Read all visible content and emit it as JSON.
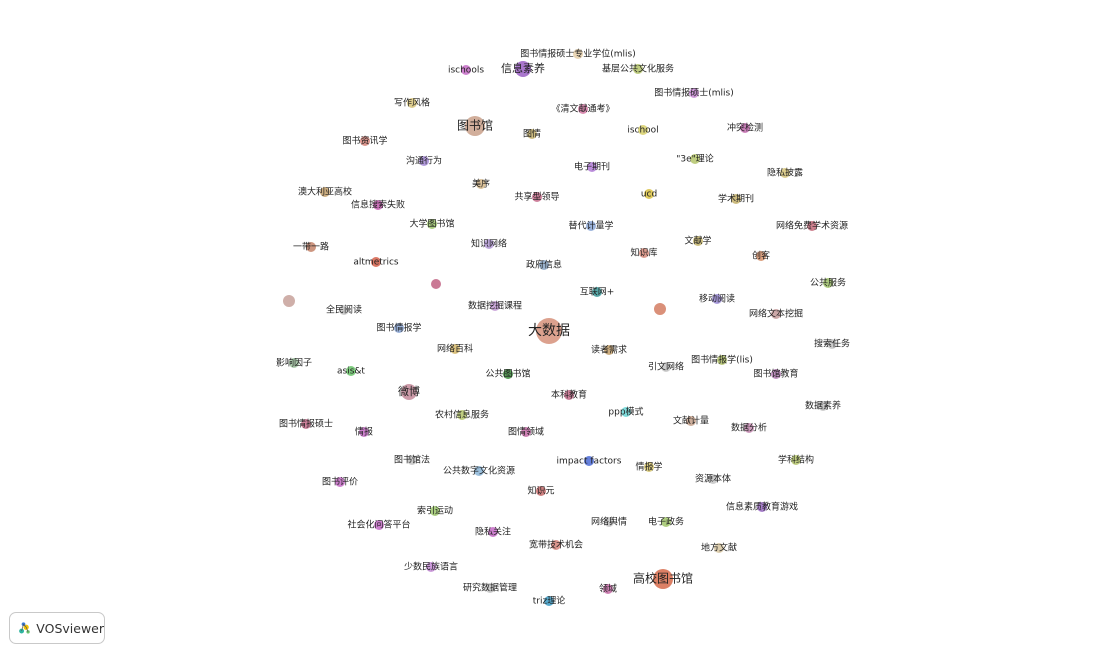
{
  "app": {
    "brand_label": "VOSviewer",
    "brand_icon": "vosviewer-logo-icon"
  },
  "network": {
    "nodes": [
      {
        "label": "图书情报硕士专业学位(mlis)",
        "color": "#e6cfa8",
        "size": "s"
      },
      {
        "label": "ischools",
        "color": "#c46ac6",
        "size": "s"
      },
      {
        "label": "信息素养",
        "color": "#9a5ec4",
        "size": "m"
      },
      {
        "label": "基层公共文化服务",
        "color": "#b4c46a",
        "size": "s"
      },
      {
        "label": "图书情报硕士(mlis)",
        "color": "#c98ad6",
        "size": "s"
      },
      {
        "label": "写作风格",
        "color": "#d8c47a",
        "size": "s"
      },
      {
        "label": "《清文献通考》",
        "color": "#d67aa6",
        "size": "s"
      },
      {
        "label": "图书馆",
        "color": "#c9a08a",
        "size": "l"
      },
      {
        "label": "图情",
        "color": "#c4b06a",
        "size": "s"
      },
      {
        "label": "ischool",
        "color": "#d8d06a",
        "size": "s"
      },
      {
        "label": "冲突检测",
        "color": "#c46ab0",
        "size": "s"
      },
      {
        "label": "图书资讯学",
        "color": "#d6847a",
        "size": "s"
      },
      {
        "label": "沟通行为",
        "color": "#a58ad6",
        "size": "s"
      },
      {
        "label": "电子期刊",
        "color": "#b07ad6",
        "size": "s"
      },
      {
        "label": "\"3e\"理论",
        "color": "#b4c46a",
        "size": "s"
      },
      {
        "label": "隐私披露",
        "color": "#d6c47a",
        "size": "s"
      },
      {
        "label": "美序",
        "color": "#d6b88a",
        "size": "s"
      },
      {
        "label": "澳大利亚高校",
        "color": "#c4a06a",
        "size": "s"
      },
      {
        "label": "共享型领导",
        "color": "#c46a8a",
        "size": "s"
      },
      {
        "label": "ucd",
        "color": "#d8c040",
        "size": "s"
      },
      {
        "label": "信息搜索失败",
        "color": "#c45ab0",
        "size": "s"
      },
      {
        "label": "学术期刊",
        "color": "#c4b06a",
        "size": "s"
      },
      {
        "label": "大学图书馆",
        "color": "#9ac46a",
        "size": "s"
      },
      {
        "label": "替代计量学",
        "color": "#8aa6d6",
        "size": "s"
      },
      {
        "label": "网络免费学术资源",
        "color": "#c46a7a",
        "size": "s"
      },
      {
        "label": "知识网络",
        "color": "#b49ad6",
        "size": "s"
      },
      {
        "label": "文献学",
        "color": "#c4b46a",
        "size": "s"
      },
      {
        "label": "一带一路",
        "color": "#c4846a",
        "size": "s"
      },
      {
        "label": "知识库",
        "color": "#d68a7a",
        "size": "s"
      },
      {
        "label": "创客",
        "color": "#d6906a",
        "size": "s"
      },
      {
        "label": "altmetrics",
        "color": "#d6604a",
        "size": "s"
      },
      {
        "label": "政府信息",
        "color": "#8aa6c4",
        "size": "s"
      },
      {
        "label": "公共服务",
        "color": "#a0c46a",
        "size": "s"
      },
      {
        "label": "互联网+",
        "color": "#3a9a9a",
        "size": "s"
      },
      {
        "label": "数据挖掘课程",
        "color": "#c49ad6",
        "size": "s"
      },
      {
        "label": "移动阅读",
        "color": "#9a8ad6",
        "size": "s"
      },
      {
        "label": "全民阅读",
        "color": "#c4c4c4",
        "size": "s"
      },
      {
        "label": "网络文本挖掘",
        "color": "#c49a9a",
        "size": "s"
      },
      {
        "label": "图书情报学",
        "color": "#8aa6d6",
        "size": "s"
      },
      {
        "label": "大数据",
        "color": "#d6907a",
        "size": "xl"
      },
      {
        "label": "搜索任务",
        "color": "#c4c4c4",
        "size": "s"
      },
      {
        "label": "网络百科",
        "color": "#d6b86a",
        "size": "s"
      },
      {
        "label": "读者需求",
        "color": "#c4a06a",
        "size": "s"
      },
      {
        "label": "图书情报学(lis)",
        "color": "#b4c46a",
        "size": "s"
      },
      {
        "label": "影响因子",
        "color": "#a0c4a0",
        "size": "s"
      },
      {
        "label": "引文网络",
        "color": "#c4c4c4",
        "size": "s"
      },
      {
        "label": "图书馆教育",
        "color": "#b07ab0",
        "size": "s"
      },
      {
        "label": "asis&t",
        "color": "#6ac46a",
        "size": "s"
      },
      {
        "label": "公共图书馆",
        "color": "#3a8a3a",
        "size": "s"
      },
      {
        "label": "微博",
        "color": "#c48a9a",
        "size": "m"
      },
      {
        "label": "本科教育",
        "color": "#c46a8a",
        "size": "s"
      },
      {
        "label": "数据素养",
        "color": "#c4c4c4",
        "size": "s"
      },
      {
        "label": "农村信息服务",
        "color": "#b4c46a",
        "size": "s"
      },
      {
        "label": "ppp模式",
        "color": "#6ad6d6",
        "size": "s"
      },
      {
        "label": "图书情报硕士",
        "color": "#c46a8a",
        "size": "s"
      },
      {
        "label": "情报",
        "color": "#c46ac6",
        "size": "s"
      },
      {
        "label": "图情领域",
        "color": "#c46aa6",
        "size": "s"
      },
      {
        "label": "文献计量",
        "color": "#c4a08a",
        "size": "s"
      },
      {
        "label": "数据分析",
        "color": "#c48ab0",
        "size": "s"
      },
      {
        "label": "图书馆法",
        "color": "#c4c4c4",
        "size": "s"
      },
      {
        "label": "impact factors",
        "color": "#4a6ad6",
        "size": "s"
      },
      {
        "label": "情报学",
        "color": "#d6c46a",
        "size": "s"
      },
      {
        "label": "学科结构",
        "color": "#b4c46a",
        "size": "s"
      },
      {
        "label": "公共数字文化资源",
        "color": "#8ab4d6",
        "size": "s"
      },
      {
        "label": "资源本体",
        "color": "#c4c4c4",
        "size": "s"
      },
      {
        "label": "图书评价",
        "color": "#c46ac6",
        "size": "s"
      },
      {
        "label": "知识元",
        "color": "#c46a6a",
        "size": "s"
      },
      {
        "label": "信息素质教育游戏",
        "color": "#9a6ac4",
        "size": "s"
      },
      {
        "label": "索引运动",
        "color": "#9ac46a",
        "size": "s"
      },
      {
        "label": "社会化问答平台",
        "color": "#c46ac6",
        "size": "s"
      },
      {
        "label": "网络舆情",
        "color": "#c4c4c4",
        "size": "s"
      },
      {
        "label": "电子政务",
        "color": "#a0c46a",
        "size": "s"
      },
      {
        "label": "隐私关注",
        "color": "#c46ac6",
        "size": "s"
      },
      {
        "label": "宽带技术机会",
        "color": "#d6847a",
        "size": "s"
      },
      {
        "label": "地方文献",
        "color": "#d6c4a0",
        "size": "s"
      },
      {
        "label": "少数民族语言",
        "color": "#c48ad6",
        "size": "s"
      },
      {
        "label": "高校图书馆",
        "color": "#d66a4a",
        "size": "l"
      },
      {
        "label": "研究数据管理",
        "color": "#c4c4c4",
        "size": "s"
      },
      {
        "label": "领域",
        "color": "#c46aa6",
        "size": "s"
      },
      {
        "label": "triz理论",
        "color": "#3a9ac4",
        "size": "s"
      }
    ]
  }
}
